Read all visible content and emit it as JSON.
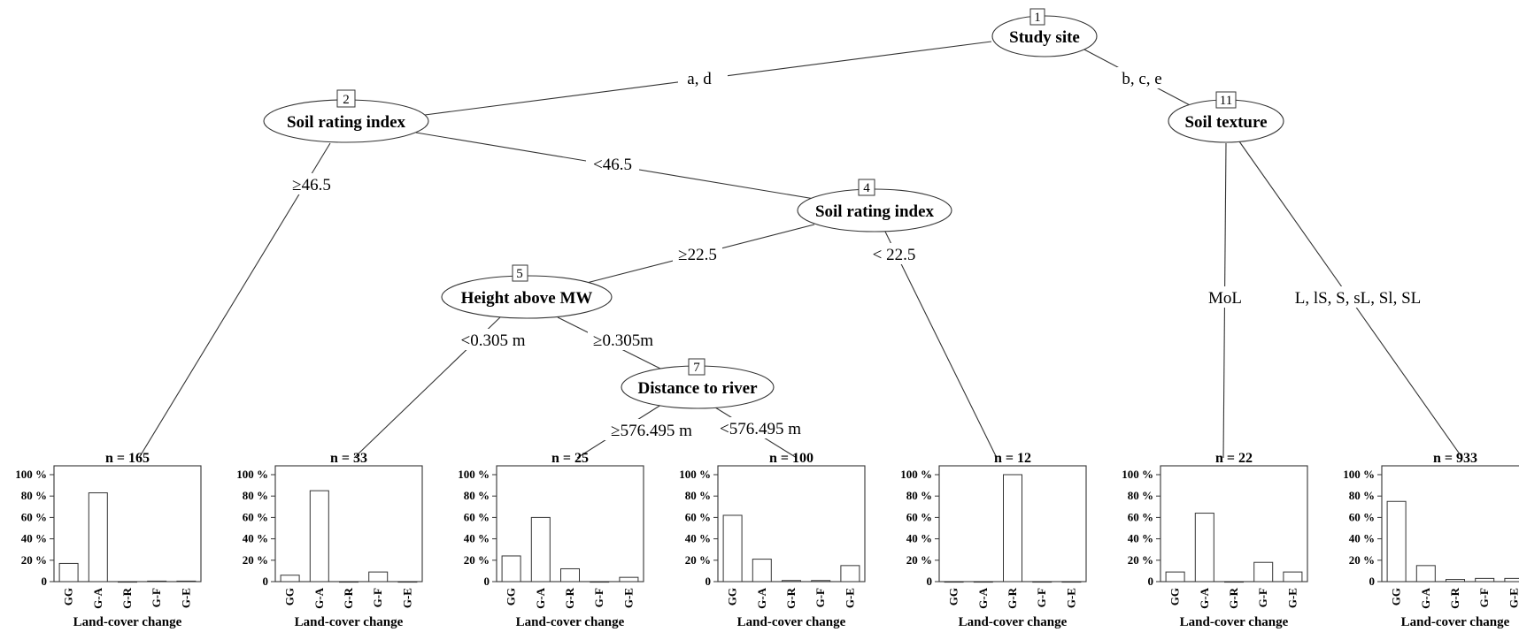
{
  "nodes": [
    {
      "id": "1",
      "label": "Study site"
    },
    {
      "id": "2",
      "label": "Soil rating index"
    },
    {
      "id": "4",
      "label": "Soil rating index"
    },
    {
      "id": "5",
      "label": "Height above MW"
    },
    {
      "id": "7",
      "label": "Distance to river"
    },
    {
      "id": "11",
      "label": "Soil texture"
    }
  ],
  "edges": [
    {
      "from": "1",
      "to": "2",
      "label": "a, d"
    },
    {
      "from": "1",
      "to": "11",
      "label": "b, c, e"
    },
    {
      "from": "2",
      "to": "leaf-1",
      "label": "≥46.5"
    },
    {
      "from": "2",
      "to": "4",
      "label": "<46.5"
    },
    {
      "from": "4",
      "to": "5",
      "label": "≥22.5"
    },
    {
      "from": "4",
      "to": "leaf-5",
      "label": "< 22.5"
    },
    {
      "from": "5",
      "to": "leaf-2",
      "label": "<0.305 m"
    },
    {
      "from": "5",
      "to": "7",
      "label": "≥0.305m"
    },
    {
      "from": "7",
      "to": "leaf-3",
      "label": "≥576.495 m"
    },
    {
      "from": "7",
      "to": "leaf-4",
      "label": "<576.495 m"
    },
    {
      "from": "11",
      "to": "leaf-6",
      "label": "MoL"
    },
    {
      "from": "11",
      "to": "leaf-7",
      "label": "L, lS, S, sL, Sl, SL"
    }
  ],
  "chart_data": [
    {
      "type": "bar",
      "title": "n = 165",
      "categories": [
        "GG",
        "G-A",
        "G-R",
        "G-F",
        "G-E"
      ],
      "values": [
        17,
        83,
        0,
        0.5,
        0.5
      ],
      "xlabel": "Land-cover change",
      "ylabel": "",
      "ylim": [
        0,
        100
      ],
      "yticks": [
        "0",
        "20 %",
        "40 %",
        "60 %",
        "80 %",
        "100 %"
      ]
    },
    {
      "type": "bar",
      "title": "n = 33",
      "categories": [
        "GG",
        "G-A",
        "G-R",
        "G-F",
        "G-E"
      ],
      "values": [
        6,
        85,
        0,
        9,
        0
      ],
      "xlabel": "Land-cover change",
      "ylabel": "",
      "ylim": [
        0,
        100
      ],
      "yticks": [
        "0",
        "20 %",
        "40 %",
        "60 %",
        "80 %",
        "100 %"
      ]
    },
    {
      "type": "bar",
      "title": "n = 25",
      "categories": [
        "GG",
        "G-A",
        "G-R",
        "G-F",
        "G-E"
      ],
      "values": [
        24,
        60,
        12,
        0,
        4
      ],
      "xlabel": "Land-cover change",
      "ylabel": "",
      "ylim": [
        0,
        100
      ],
      "yticks": [
        "0",
        "20 %",
        "40 %",
        "60 %",
        "80 %",
        "100 %"
      ]
    },
    {
      "type": "bar",
      "title": "n = 100",
      "categories": [
        "GG",
        "G-A",
        "G-R",
        "G-F",
        "G-E"
      ],
      "values": [
        62,
        21,
        1,
        1,
        15
      ],
      "xlabel": "Land-cover change",
      "ylabel": "",
      "ylim": [
        0,
        100
      ],
      "yticks": [
        "0",
        "20 %",
        "40 %",
        "60 %",
        "80 %",
        "100 %"
      ]
    },
    {
      "type": "bar",
      "title": "n = 12",
      "categories": [
        "GG",
        "G-A",
        "G-R",
        "G-F",
        "G-E"
      ],
      "values": [
        0,
        0,
        100,
        0,
        0
      ],
      "xlabel": "Land-cover change",
      "ylabel": "",
      "ylim": [
        0,
        100
      ],
      "yticks": [
        "0",
        "20 %",
        "40 %",
        "60 %",
        "80 %",
        "100 %"
      ]
    },
    {
      "type": "bar",
      "title": "n = 22",
      "categories": [
        "GG",
        "G-A",
        "G-R",
        "G-F",
        "G-E"
      ],
      "values": [
        9,
        64,
        0,
        18,
        9
      ],
      "xlabel": "Land-cover change",
      "ylabel": "",
      "ylim": [
        0,
        100
      ],
      "yticks": [
        "0",
        "20 %",
        "40 %",
        "60 %",
        "80 %",
        "100 %"
      ]
    },
    {
      "type": "bar",
      "title": "n = 933",
      "categories": [
        "GG",
        "G-A",
        "G-R",
        "G-F",
        "G-E"
      ],
      "values": [
        75,
        15,
        2,
        3,
        3
      ],
      "xlabel": "Land-cover change",
      "ylabel": "",
      "ylim": [
        0,
        100
      ],
      "yticks": [
        "0",
        "20 %",
        "40 %",
        "60 %",
        "80 %",
        "100 %"
      ]
    }
  ]
}
